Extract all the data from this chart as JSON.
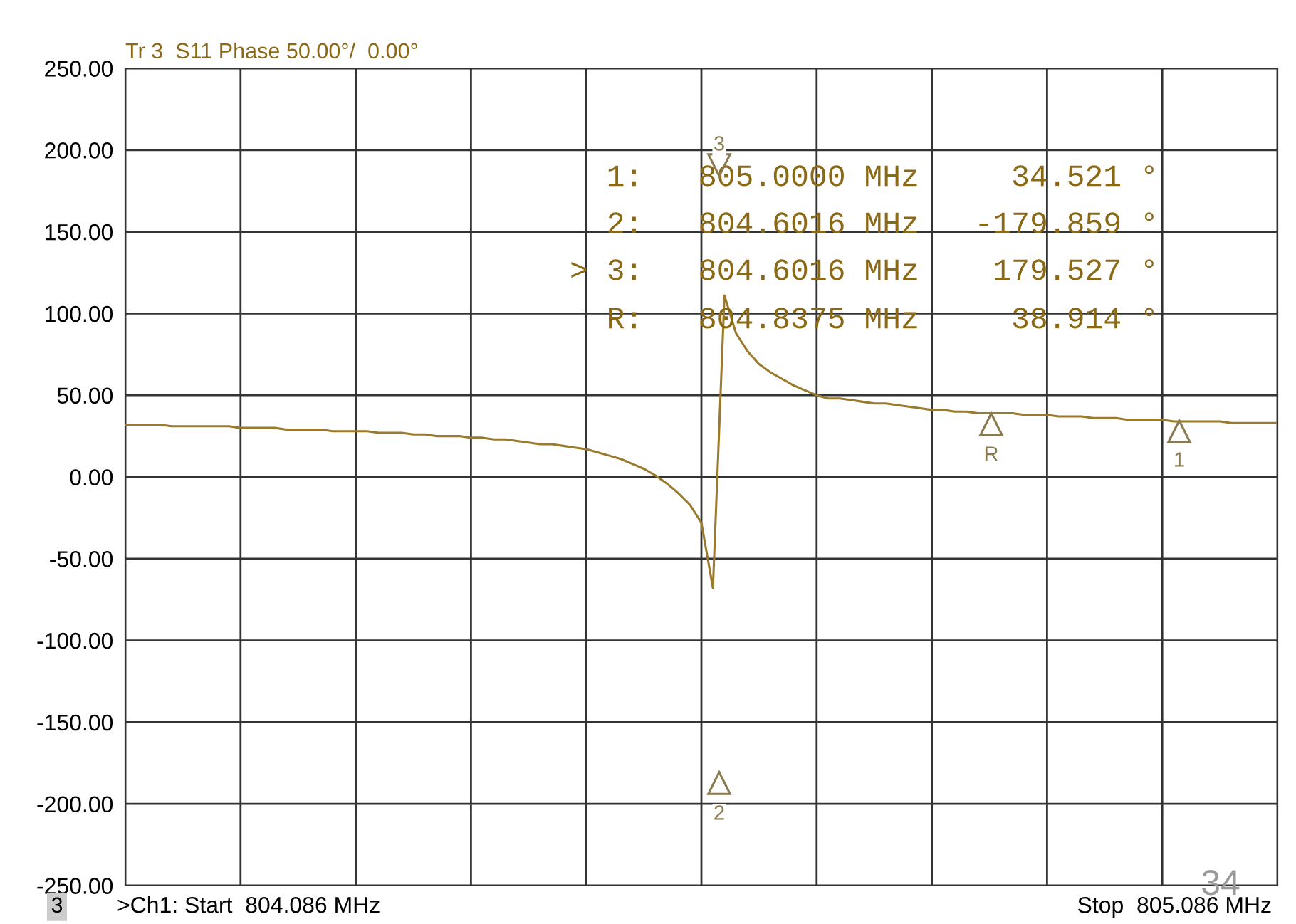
{
  "chart_data": {
    "type": "line",
    "title": "Tr 3  S11 Phase 50.00°/  0.00°",
    "categories": [
      null,
      null,
      null,
      null,
      null,
      null,
      null,
      null,
      null,
      null,
      null,
      null,
      null,
      null,
      null,
      null,
      null,
      null,
      null,
      null,
      null,
      null,
      null,
      null,
      null,
      null,
      null,
      null,
      null,
      null,
      null,
      null,
      null,
      null,
      null,
      null,
      null,
      null,
      null,
      null,
      null,
      null,
      null,
      null,
      null,
      null,
      null,
      null,
      null,
      null,
      null,
      null,
      null,
      null,
      null,
      null,
      null,
      null,
      null,
      null,
      null,
      null,
      null,
      null,
      null,
      null,
      null,
      null,
      null,
      null,
      null,
      null,
      null,
      null,
      null,
      null,
      null,
      null,
      null,
      null,
      null,
      null,
      null,
      null,
      null,
      null,
      null,
      null,
      null,
      null,
      null,
      null,
      null,
      null,
      null,
      null,
      null,
      null,
      null,
      null,
      null
    ],
    "ylim": [
      -250,
      250
    ],
    "yticks": [
      {
        "value": 250,
        "label": "250.00"
      },
      {
        "value": 200,
        "label": "200.00"
      },
      {
        "value": 150,
        "label": "150.00"
      },
      {
        "value": 100,
        "label": "100.00"
      },
      {
        "value": 50,
        "label": "50.00"
      },
      {
        "value": 0,
        "label": "0.00"
      },
      {
        "value": -50,
        "label": "-50.00"
      },
      {
        "value": -100,
        "label": "-100.00"
      },
      {
        "value": -150,
        "label": "-150.00"
      },
      {
        "value": -200,
        "label": "-200.00"
      },
      {
        "value": -250,
        "label": "-250.00"
      }
    ],
    "grid": true,
    "marker": "none",
    "line_style": "solid",
    "series": [
      {
        "color": "#9a7a2c",
        "values": [
          32,
          32,
          32,
          32,
          31,
          31,
          31,
          31,
          31,
          31,
          30,
          30,
          30,
          30,
          29,
          29,
          29,
          29,
          28,
          28,
          28,
          28,
          27,
          27,
          27,
          26,
          26,
          25,
          25,
          25,
          24,
          24,
          23,
          23,
          22,
          21,
          20,
          20,
          19,
          18,
          17,
          15,
          13,
          11,
          8,
          5,
          1,
          -4,
          -10,
          -17,
          -28,
          -68,
          111,
          88,
          77,
          69,
          64,
          60,
          56,
          53,
          50,
          48,
          48,
          47,
          46,
          45,
          45,
          44,
          43,
          42,
          41,
          41,
          40,
          40,
          39,
          39,
          39,
          39,
          38,
          38,
          38,
          37,
          37,
          37,
          36,
          36,
          36,
          35,
          35,
          35,
          35,
          34,
          34,
          34,
          34,
          34,
          33,
          33,
          33,
          33,
          33
        ]
      }
    ],
    "annotations": [
      "1",
      "2",
      "3",
      "R",
      "  1:   805.0000 MHz     34.521 °",
      "  2:   804.6016 MHz   -179.859 °",
      "> 3:   804.6016 MHz    179.527 °",
      "  R:   804.8375 MHz     38.914 °",
      "3",
      ">Ch1: Start  804.086 MHz",
      "Stop  805.086 MHz",
      "34"
    ]
  }
}
